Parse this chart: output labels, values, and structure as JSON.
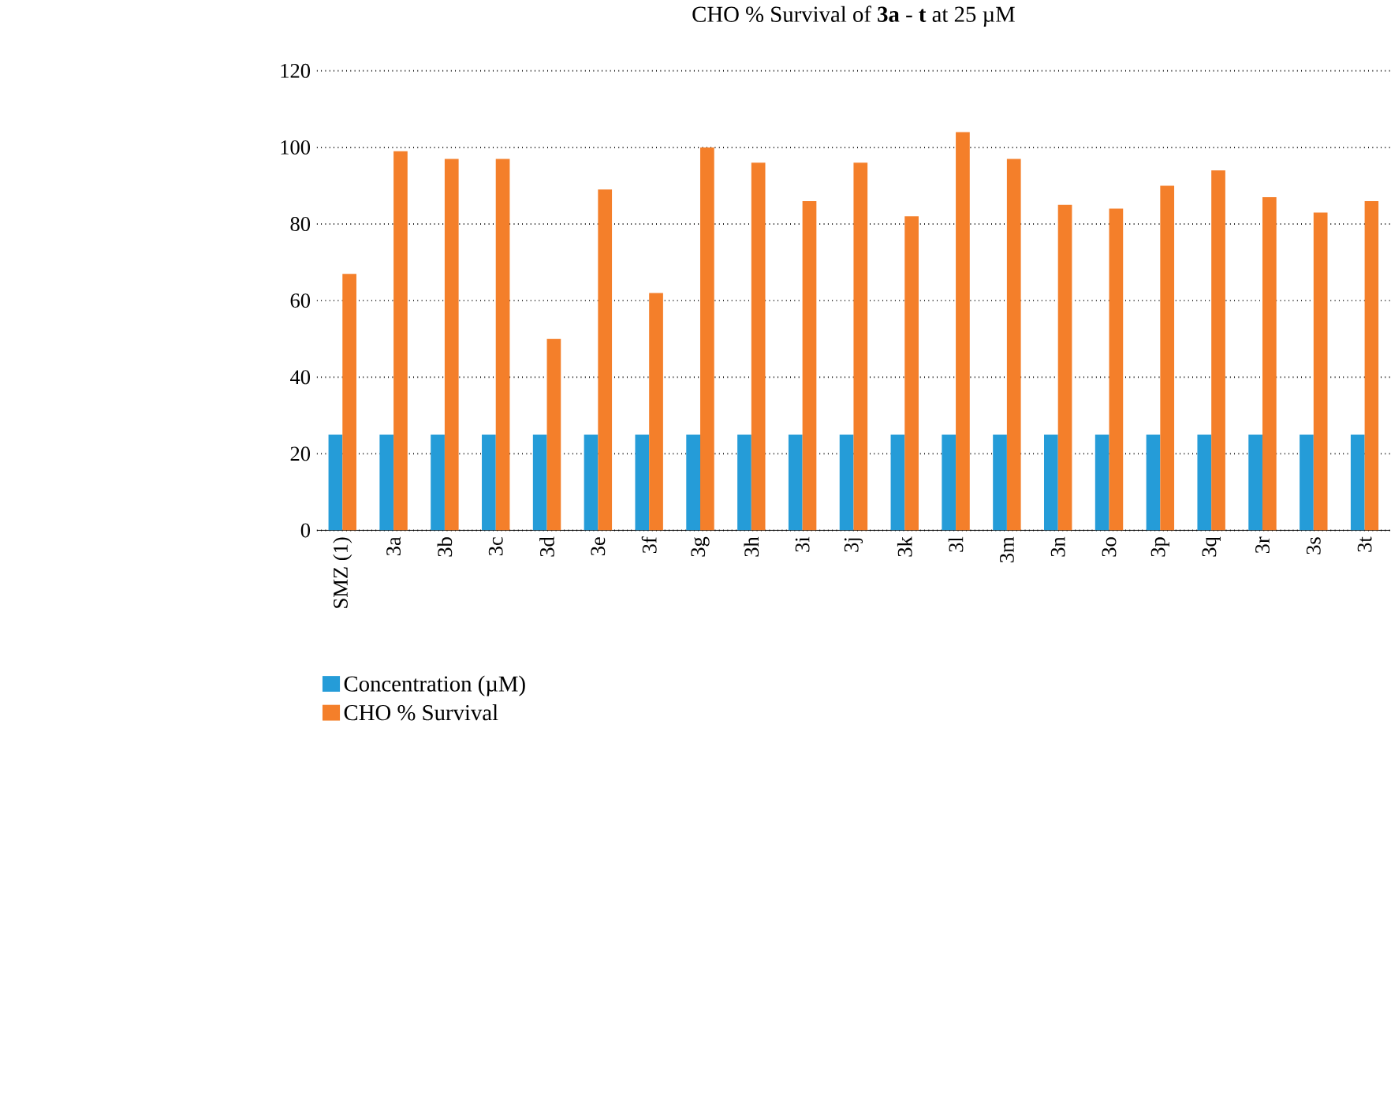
{
  "chart_data": {
    "type": "bar",
    "title": "CHO % Survival of **3a** - **t** at 25 µM",
    "categories": [
      "SMZ (1)",
      "3a",
      "3b",
      "3c",
      "3d",
      "3e",
      "3f",
      "3g",
      "3h",
      "3i",
      "3j",
      "3k",
      "3l",
      "3m",
      "3n",
      "3o",
      "3p",
      "3q",
      "3r",
      "3s",
      "3t"
    ],
    "series": [
      {
        "name": "Concentration (µM)",
        "color": "#259cd8",
        "values": [
          25,
          25,
          25,
          25,
          25,
          25,
          25,
          25,
          25,
          25,
          25,
          25,
          25,
          25,
          25,
          25,
          25,
          25,
          25,
          25,
          25
        ]
      },
      {
        "name": "CHO % Survival",
        "color": "#f47f2a",
        "values": [
          67,
          99,
          97,
          97,
          50,
          89,
          62,
          100,
          96,
          86,
          96,
          82,
          104,
          97,
          85,
          84,
          90,
          94,
          87,
          83,
          86
        ]
      }
    ],
    "ylim": [
      0,
      120
    ],
    "yticks": [
      0,
      20,
      40,
      60,
      80,
      100,
      120
    ],
    "grid": "y",
    "legend": "bottom left"
  }
}
